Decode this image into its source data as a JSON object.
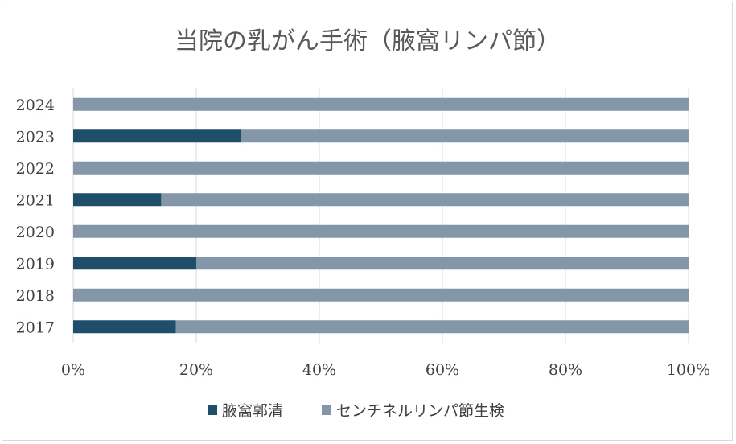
{
  "chart_data": {
    "type": "bar",
    "orientation": "horizontal",
    "stacked": "percent",
    "title": "当院の乳がん手術（腋窩リンパ節）",
    "categories": [
      "2017",
      "2018",
      "2019",
      "2020",
      "2021",
      "2022",
      "2023",
      "2024"
    ],
    "series": [
      {
        "name": "腋窩郭清",
        "color": "#1f4e6b",
        "values": [
          16.7,
          0,
          20,
          0,
          14.3,
          0,
          27.3,
          0
        ]
      },
      {
        "name": "センチネルリンパ節生検",
        "color": "#8497a8",
        "values": [
          83.3,
          100,
          80,
          100,
          85.7,
          100,
          72.7,
          100
        ]
      }
    ],
    "x_ticks": [
      "0%",
      "20%",
      "40%",
      "60%",
      "80%",
      "100%"
    ],
    "xlim": [
      0,
      100
    ],
    "grid": true,
    "legend_position": "bottom"
  }
}
